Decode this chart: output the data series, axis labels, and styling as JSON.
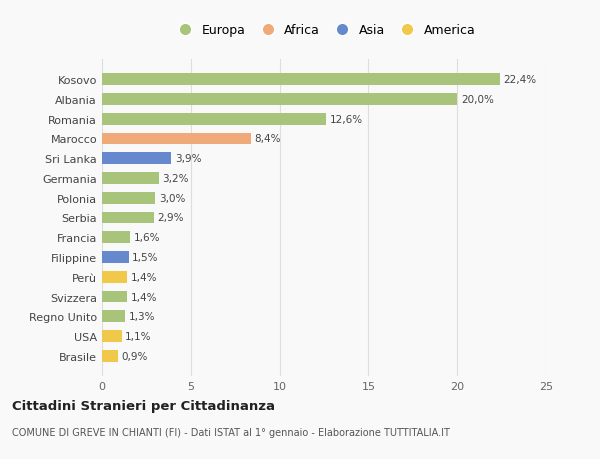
{
  "countries": [
    "Kosovo",
    "Albania",
    "Romania",
    "Marocco",
    "Sri Lanka",
    "Germania",
    "Polonia",
    "Serbia",
    "Francia",
    "Filippine",
    "Perù",
    "Svizzera",
    "Regno Unito",
    "USA",
    "Brasile"
  ],
  "values": [
    22.4,
    20.0,
    12.6,
    8.4,
    3.9,
    3.2,
    3.0,
    2.9,
    1.6,
    1.5,
    1.4,
    1.4,
    1.3,
    1.1,
    0.9
  ],
  "labels": [
    "22,4%",
    "20,0%",
    "12,6%",
    "8,4%",
    "3,9%",
    "3,2%",
    "3,0%",
    "2,9%",
    "1,6%",
    "1,5%",
    "1,4%",
    "1,4%",
    "1,3%",
    "1,1%",
    "0,9%"
  ],
  "continents": [
    "Europa",
    "Europa",
    "Europa",
    "Africa",
    "Asia",
    "Europa",
    "Europa",
    "Europa",
    "Europa",
    "Asia",
    "America",
    "Europa",
    "Europa",
    "America",
    "America"
  ],
  "colors": {
    "Europa": "#a8c47a",
    "Africa": "#f0aa7a",
    "Asia": "#6688cc",
    "America": "#f0c84a"
  },
  "legend_order": [
    "Europa",
    "Africa",
    "Asia",
    "America"
  ],
  "xlim": [
    0,
    25
  ],
  "xticks": [
    0,
    5,
    10,
    15,
    20,
    25
  ],
  "title": "Cittadini Stranieri per Cittadinanza",
  "subtitle": "COMUNE DI GREVE IN CHIANTI (FI) - Dati ISTAT al 1° gennaio - Elaborazione TUTTITALIA.IT",
  "background_color": "#f9f9f9",
  "grid_color": "#dddddd",
  "bar_height": 0.6
}
